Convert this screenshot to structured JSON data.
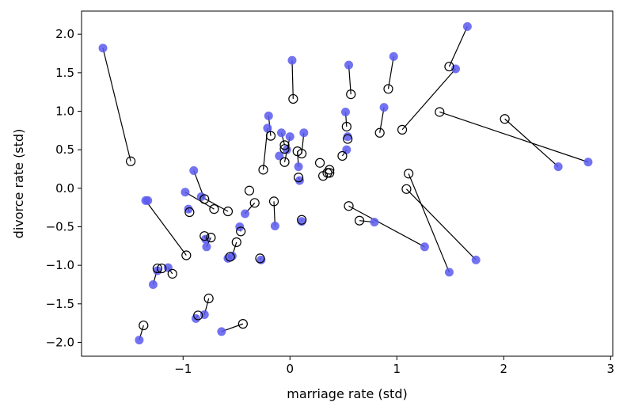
{
  "chart_data": {
    "type": "scatter",
    "xlabel": "marriage rate (std)",
    "ylabel": "divorce rate (std)",
    "xlim": [
      -1.95,
      3.02
    ],
    "ylim": [
      -2.18,
      2.3
    ],
    "xticks": [
      -1,
      0,
      1,
      2,
      3
    ],
    "yticks": [
      -2.0,
      -1.5,
      -1.0,
      -0.5,
      0.0,
      0.5,
      1.0,
      1.5,
      2.0
    ],
    "xtick_labels": [
      "−1",
      "0",
      "1",
      "2",
      "3"
    ],
    "ytick_labels": [
      "−2.0",
      "−1.5",
      "−1.0",
      "−0.5",
      "0.0",
      "0.5",
      "1.0",
      "1.5",
      "2.0"
    ],
    "grid": false,
    "colors": {
      "observed": "#5a5af0",
      "predicted": "#000000",
      "link": "#000000"
    },
    "series": [
      {
        "marker": "filled-circle",
        "points": [
          [
            -1.75,
            1.82
          ],
          [
            -1.35,
            -0.16
          ],
          [
            -1.33,
            -0.16
          ],
          [
            -0.9,
            0.23
          ],
          [
            -0.98,
            -0.05
          ],
          [
            -0.95,
            -0.27
          ],
          [
            -0.83,
            -0.11
          ],
          [
            -0.79,
            -0.66
          ],
          [
            -0.78,
            -0.76
          ],
          [
            -1.28,
            -1.25
          ],
          [
            -1.24,
            -1.07
          ],
          [
            -1.14,
            -1.03
          ],
          [
            -0.58,
            -0.91
          ],
          [
            -0.54,
            -0.88
          ],
          [
            -0.47,
            -0.5
          ],
          [
            -0.42,
            -0.33
          ],
          [
            -0.27,
            -0.93
          ],
          [
            -0.88,
            -1.69
          ],
          [
            -0.8,
            -1.64
          ],
          [
            -1.41,
            -1.97
          ],
          [
            -0.64,
            -1.86
          ],
          [
            -0.14,
            -0.49
          ],
          [
            -0.2,
            0.94
          ],
          [
            -0.21,
            0.78
          ],
          [
            -0.08,
            0.72
          ],
          [
            0.0,
            0.67
          ],
          [
            0.02,
            1.66
          ],
          [
            0.08,
            0.28
          ],
          [
            0.09,
            0.1
          ],
          [
            0.11,
            -0.43
          ],
          [
            0.13,
            0.72
          ],
          [
            -0.03,
            0.5
          ],
          [
            0.52,
            0.99
          ],
          [
            0.55,
            1.6
          ],
          [
            0.54,
            0.67
          ],
          [
            0.53,
            0.5
          ],
          [
            0.88,
            1.05
          ],
          [
            0.97,
            1.71
          ],
          [
            1.55,
            1.55
          ],
          [
            1.66,
            2.1
          ],
          [
            0.79,
            -0.44
          ],
          [
            1.26,
            -0.76
          ],
          [
            1.49,
            -1.09
          ],
          [
            1.74,
            -0.93
          ],
          [
            2.51,
            0.28
          ],
          [
            2.79,
            0.34
          ],
          [
            -0.1,
            0.42
          ]
        ]
      },
      {
        "marker": "open-circle",
        "points": [
          [
            -1.49,
            0.35
          ],
          [
            -0.97,
            -0.87
          ],
          [
            -0.94,
            -0.31
          ],
          [
            -0.8,
            -0.14
          ],
          [
            -0.71,
            -0.27
          ],
          [
            -0.58,
            -0.3
          ],
          [
            -0.8,
            -0.62
          ],
          [
            -0.74,
            -0.64
          ],
          [
            -1.24,
            -1.04
          ],
          [
            -1.1,
            -1.11
          ],
          [
            -1.2,
            -1.04
          ],
          [
            -0.56,
            -0.89
          ],
          [
            -0.5,
            -0.7
          ],
          [
            -0.46,
            -0.56
          ],
          [
            -0.33,
            -0.19
          ],
          [
            -0.38,
            -0.03
          ],
          [
            -0.28,
            -0.91
          ],
          [
            -0.86,
            -1.65
          ],
          [
            -0.76,
            -1.43
          ],
          [
            -1.37,
            -1.78
          ],
          [
            -0.44,
            -1.76
          ],
          [
            -0.15,
            -0.17
          ],
          [
            -0.18,
            0.68
          ],
          [
            -0.25,
            0.24
          ],
          [
            -0.05,
            0.56
          ],
          [
            -0.05,
            0.34
          ],
          [
            0.03,
            1.16
          ],
          [
            0.07,
            0.48
          ],
          [
            0.08,
            0.14
          ],
          [
            0.11,
            -0.41
          ],
          [
            0.11,
            0.45
          ],
          [
            -0.05,
            0.51
          ],
          [
            0.53,
            0.8
          ],
          [
            0.57,
            1.22
          ],
          [
            0.54,
            0.64
          ],
          [
            0.49,
            0.42
          ],
          [
            0.84,
            0.72
          ],
          [
            0.92,
            1.29
          ],
          [
            1.05,
            0.76
          ],
          [
            1.49,
            1.58
          ],
          [
            0.65,
            -0.42
          ],
          [
            0.55,
            -0.23
          ],
          [
            1.11,
            0.19
          ],
          [
            1.09,
            -0.01
          ],
          [
            2.01,
            0.9
          ],
          [
            1.4,
            0.99
          ],
          [
            0.28,
            0.33
          ],
          [
            0.31,
            0.16
          ],
          [
            0.35,
            0.2
          ],
          [
            0.37,
            0.2
          ],
          [
            0.37,
            0.24
          ]
        ]
      }
    ],
    "links": [
      [
        [
          -1.75,
          1.82
        ],
        [
          -1.49,
          0.35
        ]
      ],
      [
        [
          -1.35,
          -0.16
        ],
        [
          -0.97,
          -0.87
        ]
      ],
      [
        [
          -0.9,
          0.23
        ],
        [
          -0.8,
          -0.14
        ]
      ],
      [
        [
          -0.98,
          -0.05
        ],
        [
          -0.71,
          -0.27
        ]
      ],
      [
        [
          -0.95,
          -0.27
        ],
        [
          -0.94,
          -0.31
        ]
      ],
      [
        [
          -0.83,
          -0.11
        ],
        [
          -0.58,
          -0.3
        ]
      ],
      [
        [
          -0.79,
          -0.66
        ],
        [
          -0.8,
          -0.62
        ]
      ],
      [
        [
          -0.78,
          -0.76
        ],
        [
          -0.74,
          -0.64
        ]
      ],
      [
        [
          -1.28,
          -1.25
        ],
        [
          -1.24,
          -1.04
        ]
      ],
      [
        [
          -1.14,
          -1.03
        ],
        [
          -1.1,
          -1.11
        ]
      ],
      [
        [
          -0.58,
          -0.91
        ],
        [
          -0.56,
          -0.89
        ]
      ],
      [
        [
          -0.54,
          -0.88
        ],
        [
          -0.5,
          -0.7
        ]
      ],
      [
        [
          -0.47,
          -0.5
        ],
        [
          -0.46,
          -0.56
        ]
      ],
      [
        [
          -0.42,
          -0.33
        ],
        [
          -0.33,
          -0.19
        ]
      ],
      [
        [
          -0.27,
          -0.93
        ],
        [
          -0.28,
          -0.91
        ]
      ],
      [
        [
          -0.88,
          -1.69
        ],
        [
          -0.86,
          -1.65
        ]
      ],
      [
        [
          -0.8,
          -1.64
        ],
        [
          -0.76,
          -1.43
        ]
      ],
      [
        [
          -1.41,
          -1.97
        ],
        [
          -1.37,
          -1.78
        ]
      ],
      [
        [
          -0.64,
          -1.86
        ],
        [
          -0.44,
          -1.76
        ]
      ],
      [
        [
          -0.14,
          -0.49
        ],
        [
          -0.15,
          -0.17
        ]
      ],
      [
        [
          -0.2,
          0.94
        ],
        [
          -0.18,
          0.68
        ]
      ],
      [
        [
          -0.21,
          0.78
        ],
        [
          -0.25,
          0.24
        ]
      ],
      [
        [
          -0.08,
          0.72
        ],
        [
          -0.05,
          0.56
        ]
      ],
      [
        [
          0.0,
          0.67
        ],
        [
          -0.05,
          0.34
        ]
      ],
      [
        [
          0.02,
          1.66
        ],
        [
          0.03,
          1.16
        ]
      ],
      [
        [
          0.08,
          0.28
        ],
        [
          0.07,
          0.48
        ]
      ],
      [
        [
          0.09,
          0.1
        ],
        [
          0.08,
          0.14
        ]
      ],
      [
        [
          0.11,
          -0.43
        ],
        [
          0.11,
          -0.41
        ]
      ],
      [
        [
          0.13,
          0.72
        ],
        [
          0.11,
          0.45
        ]
      ],
      [
        [
          0.52,
          0.99
        ],
        [
          0.53,
          0.8
        ]
      ],
      [
        [
          0.55,
          1.6
        ],
        [
          0.57,
          1.22
        ]
      ],
      [
        [
          0.53,
          0.5
        ],
        [
          0.49,
          0.42
        ]
      ],
      [
        [
          0.88,
          1.05
        ],
        [
          0.84,
          0.72
        ]
      ],
      [
        [
          0.97,
          1.71
        ],
        [
          0.92,
          1.29
        ]
      ],
      [
        [
          1.55,
          1.55
        ],
        [
          1.05,
          0.76
        ]
      ],
      [
        [
          1.66,
          2.1
        ],
        [
          1.49,
          1.58
        ]
      ],
      [
        [
          0.79,
          -0.44
        ],
        [
          0.65,
          -0.42
        ]
      ],
      [
        [
          1.26,
          -0.76
        ],
        [
          0.55,
          -0.23
        ]
      ],
      [
        [
          1.49,
          -1.09
        ],
        [
          1.11,
          0.19
        ]
      ],
      [
        [
          1.74,
          -0.93
        ],
        [
          1.09,
          -0.01
        ]
      ],
      [
        [
          2.51,
          0.28
        ],
        [
          2.01,
          0.9
        ]
      ],
      [
        [
          2.79,
          0.34
        ],
        [
          1.4,
          0.99
        ]
      ]
    ]
  }
}
